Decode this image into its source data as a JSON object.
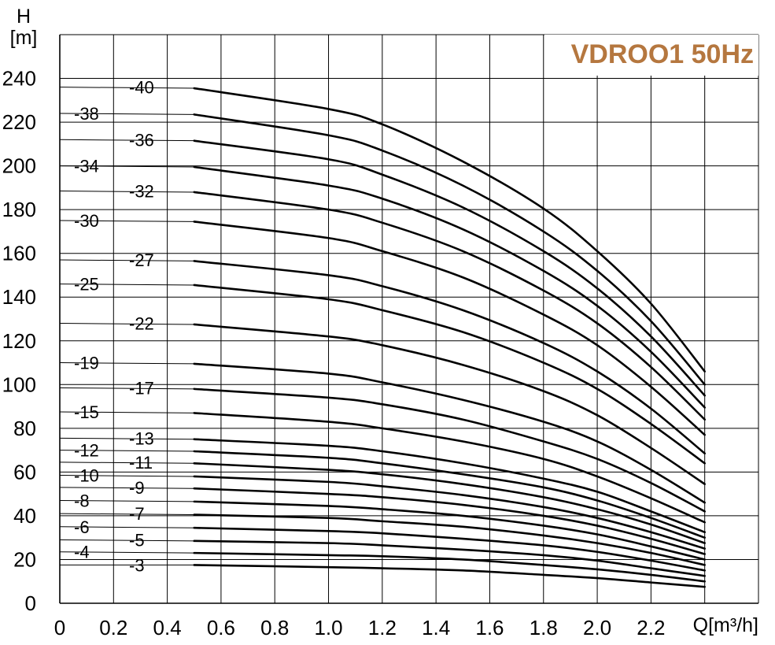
{
  "chart_data": {
    "type": "line",
    "title": "VDROO1 50Hz",
    "title_color": "#b5773f",
    "xlabel": "Q[m³/h]",
    "ylabel_line1": "H",
    "ylabel_line2": "[m]",
    "xlim": [
      0,
      2.6
    ],
    "ylim": [
      0,
      260
    ],
    "x_ticks": [
      "0",
      "0.2",
      "0.4",
      "0.6",
      "0.8",
      "1.0",
      "1.2",
      "1.4",
      "1.6",
      "1.8",
      "2.0",
      "2.2"
    ],
    "y_ticks": [
      "0",
      "20",
      "40",
      "60",
      "80",
      "100",
      "120",
      "140",
      "160",
      "180",
      "200",
      "220",
      "240"
    ],
    "grid": true,
    "series": [
      {
        "name": "-40",
        "shutoff": 236,
        "values": [
          [
            0.5,
            235.5
          ],
          [
            1.0,
            226
          ],
          [
            1.2,
            219
          ],
          [
            1.5,
            202
          ],
          [
            1.8,
            180.5
          ],
          [
            2.0,
            161
          ],
          [
            2.2,
            137
          ],
          [
            2.4,
            106
          ]
        ]
      },
      {
        "name": "-38",
        "shutoff": 224,
        "values": [
          [
            0.5,
            223.5
          ],
          [
            1.0,
            214
          ],
          [
            1.2,
            207
          ],
          [
            1.5,
            191
          ],
          [
            1.8,
            170
          ],
          [
            2.0,
            152
          ],
          [
            2.2,
            129
          ],
          [
            2.4,
            100
          ]
        ]
      },
      {
        "name": "-36",
        "shutoff": 212,
        "values": [
          [
            0.5,
            211.5
          ],
          [
            1.0,
            203
          ],
          [
            1.2,
            196
          ],
          [
            1.5,
            181
          ],
          [
            1.8,
            161
          ],
          [
            2.0,
            144
          ],
          [
            2.2,
            122
          ],
          [
            2.4,
            95
          ]
        ]
      },
      {
        "name": "-34",
        "shutoff": 200,
        "values": [
          [
            0.5,
            199.5
          ],
          [
            1.0,
            191
          ],
          [
            1.2,
            185
          ],
          [
            1.5,
            171
          ],
          [
            1.8,
            152
          ],
          [
            2.0,
            136
          ],
          [
            2.2,
            115
          ],
          [
            2.4,
            89.5
          ]
        ]
      },
      {
        "name": "-32",
        "shutoff": 188.5,
        "values": [
          [
            0.5,
            188
          ],
          [
            1.0,
            180
          ],
          [
            1.2,
            174
          ],
          [
            1.5,
            161
          ],
          [
            1.8,
            143
          ],
          [
            2.0,
            128
          ],
          [
            2.2,
            108
          ],
          [
            2.4,
            84
          ]
        ]
      },
      {
        "name": "-30",
        "shutoff": 175,
        "values": [
          [
            0.5,
            174.5
          ],
          [
            1.0,
            167
          ],
          [
            1.2,
            161
          ],
          [
            1.5,
            149
          ],
          [
            1.8,
            132
          ],
          [
            2.0,
            118
          ],
          [
            2.2,
            99
          ],
          [
            2.4,
            77
          ]
        ]
      },
      {
        "name": "-27",
        "shutoff": 157,
        "values": [
          [
            0.5,
            156.5
          ],
          [
            1.0,
            150
          ],
          [
            1.2,
            145
          ],
          [
            1.5,
            134
          ],
          [
            1.8,
            119
          ],
          [
            2.0,
            106
          ],
          [
            2.2,
            89
          ],
          [
            2.4,
            68.5
          ]
        ]
      },
      {
        "name": "-25",
        "shutoff": 146,
        "values": [
          [
            0.5,
            145.5
          ],
          [
            1.0,
            139
          ],
          [
            1.2,
            134
          ],
          [
            1.5,
            124
          ],
          [
            1.8,
            110
          ],
          [
            2.0,
            98
          ],
          [
            2.2,
            82
          ],
          [
            2.4,
            64
          ]
        ]
      },
      {
        "name": "-22",
        "shutoff": 128,
        "values": [
          [
            0.5,
            127.5
          ],
          [
            1.0,
            122
          ],
          [
            1.2,
            118
          ],
          [
            1.5,
            109
          ],
          [
            1.8,
            97
          ],
          [
            2.0,
            86
          ],
          [
            2.2,
            71
          ],
          [
            2.4,
            54.5
          ]
        ]
      },
      {
        "name": "-19",
        "shutoff": 110,
        "values": [
          [
            0.5,
            109.5
          ],
          [
            1.0,
            105
          ],
          [
            1.2,
            101
          ],
          [
            1.5,
            93
          ],
          [
            1.8,
            83
          ],
          [
            2.0,
            74
          ],
          [
            2.2,
            61
          ],
          [
            2.4,
            46
          ]
        ]
      },
      {
        "name": "-17",
        "shutoff": 98.5,
        "values": [
          [
            0.5,
            98
          ],
          [
            1.0,
            94
          ],
          [
            1.2,
            91
          ],
          [
            1.5,
            84
          ],
          [
            1.8,
            74
          ],
          [
            2.0,
            66
          ],
          [
            2.2,
            55
          ],
          [
            2.4,
            42
          ]
        ]
      },
      {
        "name": "-15",
        "shutoff": 87.5,
        "values": [
          [
            0.5,
            87
          ],
          [
            1.0,
            83
          ],
          [
            1.2,
            80
          ],
          [
            1.5,
            74
          ],
          [
            1.8,
            66
          ],
          [
            2.0,
            58
          ],
          [
            2.2,
            48
          ],
          [
            2.4,
            37
          ]
        ]
      },
      {
        "name": "-13",
        "shutoff": 75.5,
        "values": [
          [
            0.5,
            75
          ],
          [
            1.0,
            72
          ],
          [
            1.2,
            69.5
          ],
          [
            1.5,
            64
          ],
          [
            1.8,
            57
          ],
          [
            2.0,
            51
          ],
          [
            2.2,
            42
          ],
          [
            2.4,
            32.5
          ]
        ]
      },
      {
        "name": "-12",
        "shutoff": 70,
        "values": [
          [
            0.5,
            69.5
          ],
          [
            1.0,
            66.5
          ],
          [
            1.2,
            64
          ],
          [
            1.5,
            59
          ],
          [
            1.8,
            53
          ],
          [
            2.0,
            47
          ],
          [
            2.2,
            39
          ],
          [
            2.4,
            30
          ]
        ]
      },
      {
        "name": "-11",
        "shutoff": 64.5,
        "values": [
          [
            0.5,
            64
          ],
          [
            1.0,
            61
          ],
          [
            1.2,
            59
          ],
          [
            1.5,
            54.5
          ],
          [
            1.8,
            48.5
          ],
          [
            2.0,
            43
          ],
          [
            2.2,
            36
          ],
          [
            2.4,
            27.5
          ]
        ]
      },
      {
        "name": "-10",
        "shutoff": 58.5,
        "values": [
          [
            0.5,
            58
          ],
          [
            1.0,
            55.5
          ],
          [
            1.2,
            53.5
          ],
          [
            1.5,
            49.5
          ],
          [
            1.8,
            44
          ],
          [
            2.0,
            39
          ],
          [
            2.2,
            32.5
          ],
          [
            2.4,
            25
          ]
        ]
      },
      {
        "name": "-9",
        "shutoff": 53,
        "values": [
          [
            0.5,
            52.5
          ],
          [
            1.0,
            50
          ],
          [
            1.2,
            48.5
          ],
          [
            1.5,
            45
          ],
          [
            1.8,
            40
          ],
          [
            2.0,
            35.5
          ],
          [
            2.2,
            29.5
          ],
          [
            2.4,
            22.5
          ]
        ]
      },
      {
        "name": "-8",
        "shutoff": 47,
        "values": [
          [
            0.5,
            46.5
          ],
          [
            1.0,
            44.5
          ],
          [
            1.2,
            43
          ],
          [
            1.5,
            40
          ],
          [
            1.8,
            35.5
          ],
          [
            2.0,
            31.5
          ],
          [
            2.2,
            26
          ],
          [
            2.4,
            20
          ]
        ]
      },
      {
        "name": "-7",
        "shutoff": 41,
        "values": [
          [
            0.5,
            40.5
          ],
          [
            1.0,
            39
          ],
          [
            1.2,
            37.5
          ],
          [
            1.5,
            35
          ],
          [
            1.8,
            31
          ],
          [
            2.0,
            27.5
          ],
          [
            2.2,
            23
          ],
          [
            2.4,
            17.5
          ]
        ]
      },
      {
        "name": "-6",
        "shutoff": 35,
        "values": [
          [
            0.5,
            34.5
          ],
          [
            1.0,
            33
          ],
          [
            1.2,
            32
          ],
          [
            1.5,
            29.5
          ],
          [
            1.8,
            26.5
          ],
          [
            2.0,
            23.5
          ],
          [
            2.2,
            19.5
          ],
          [
            2.4,
            15
          ]
        ]
      },
      {
        "name": "-5",
        "shutoff": 29,
        "values": [
          [
            0.5,
            28.5
          ],
          [
            1.0,
            27.5
          ],
          [
            1.2,
            26.5
          ],
          [
            1.5,
            24.5
          ],
          [
            1.8,
            22
          ],
          [
            2.0,
            19.5
          ],
          [
            2.2,
            16
          ],
          [
            2.4,
            12.5
          ]
        ]
      },
      {
        "name": "-4",
        "shutoff": 23.5,
        "values": [
          [
            0.5,
            23
          ],
          [
            1.0,
            22
          ],
          [
            1.2,
            21.5
          ],
          [
            1.5,
            20
          ],
          [
            1.8,
            17.5
          ],
          [
            2.0,
            15.5
          ],
          [
            2.2,
            13
          ],
          [
            2.4,
            10
          ]
        ]
      },
      {
        "name": "-3",
        "shutoff": 17.5,
        "values": [
          [
            0.5,
            17.5
          ],
          [
            1.0,
            16.5
          ],
          [
            1.2,
            16
          ],
          [
            1.5,
            15
          ],
          [
            1.8,
            13
          ],
          [
            2.0,
            11.5
          ],
          [
            2.2,
            9.5
          ],
          [
            2.4,
            7.5
          ]
        ]
      }
    ],
    "label_column": {
      "-40": "right",
      "-38": "left",
      "-36": "right",
      "-34": "left",
      "-32": "right",
      "-30": "left",
      "-27": "right",
      "-25": "left",
      "-22": "right",
      "-19": "left",
      "-17": "right",
      "-15": "left",
      "-13": "right",
      "-12": "left",
      "-11": "right",
      "-10": "left",
      "-9": "right",
      "-8": "left",
      "-7": "right",
      "-6": "left",
      "-5": "right",
      "-4": "left",
      "-3": "right"
    }
  }
}
